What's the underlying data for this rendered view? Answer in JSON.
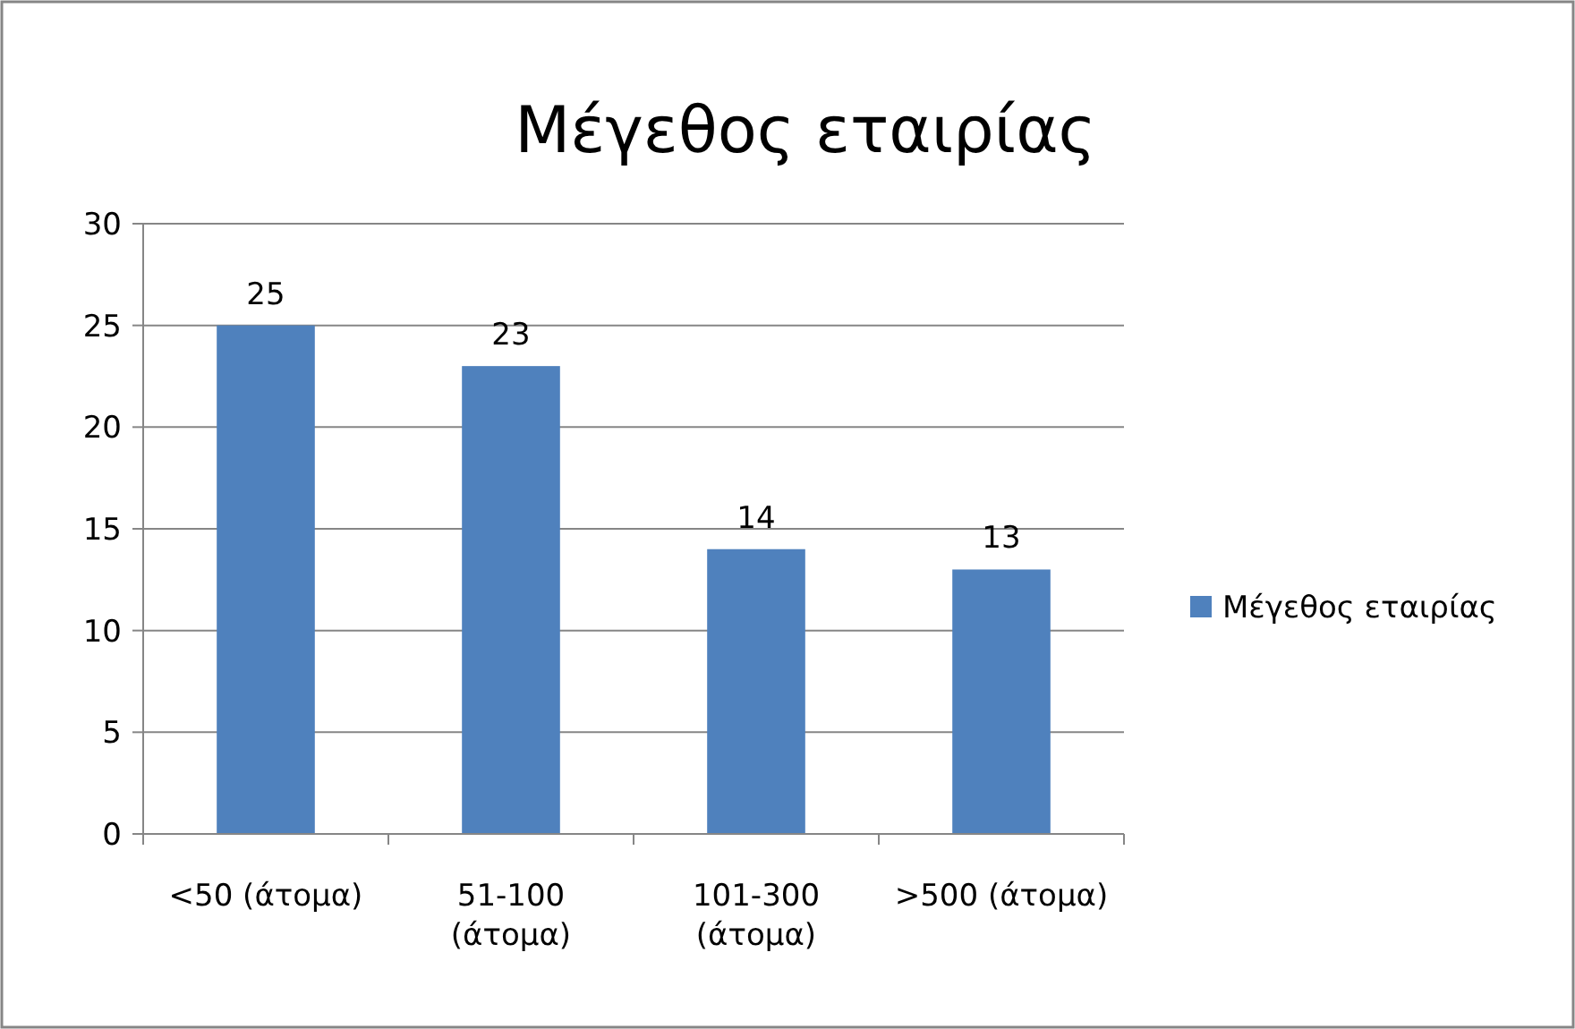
{
  "chart_data": {
    "type": "bar",
    "title": "Μέγεθος εταιρίας",
    "categories": [
      "<50 (άτομα)",
      "51-100 (άτομα)",
      "101-300 (άτομα)",
      ">500 (άτομα)"
    ],
    "series": [
      {
        "name": "Μέγεθος εταιρίας",
        "color": "#4f81bd",
        "values": [
          25,
          23,
          14,
          13
        ]
      }
    ],
    "ylim": [
      0,
      30
    ],
    "yticks": [
      0,
      5,
      10,
      15,
      20,
      25,
      30
    ],
    "grid": "y",
    "legend": "right",
    "data_labels": true
  }
}
